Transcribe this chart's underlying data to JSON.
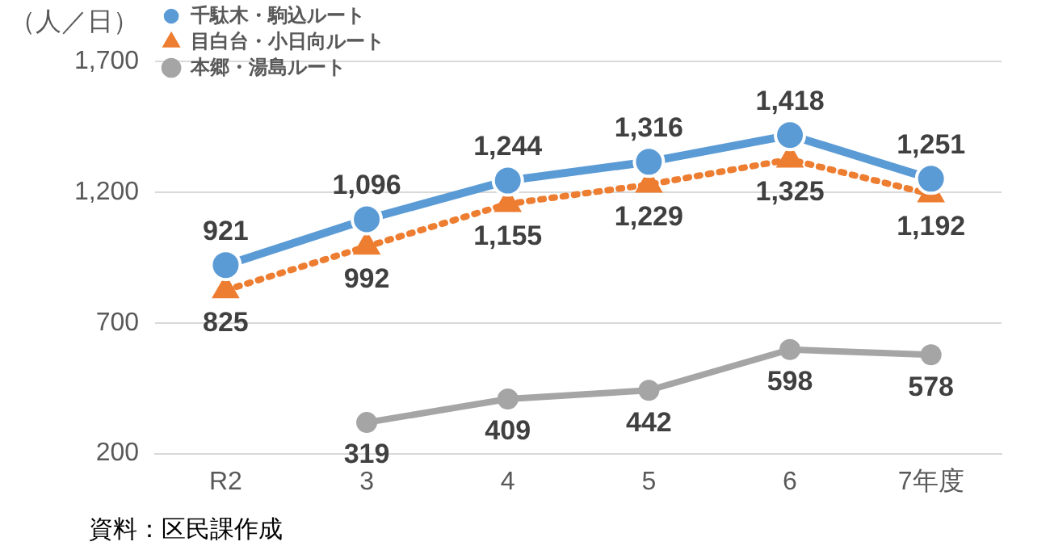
{
  "chart_data": {
    "type": "line",
    "ylabel": "（人／日）",
    "annotations": [
      "資料：区民課作成"
    ],
    "categories": [
      "R2",
      "3",
      "4",
      "5",
      "6",
      "7年度"
    ],
    "series": [
      {
        "name": "千駄木・駒込ルート",
        "color": "#5b9bd5",
        "marker": "circle",
        "line_style": "solid",
        "values": [
          921,
          1096,
          1244,
          1316,
          1418,
          1251
        ],
        "value_labels": [
          "921",
          "1,096",
          "1,244",
          "1,316",
          "1,418",
          "1,251"
        ]
      },
      {
        "name": "目白台・小日向ルート",
        "color": "#ed7d31",
        "marker": "triangle",
        "line_style": "dotted",
        "values": [
          825,
          992,
          1155,
          1229,
          1325,
          1192
        ],
        "value_labels": [
          "825",
          "992",
          "1,155",
          "1,229",
          "1,325",
          "1,192"
        ]
      },
      {
        "name": "本郷・湯島ルート",
        "color": "#a5a5a5",
        "marker": "circle",
        "line_style": "solid",
        "values": [
          null,
          319,
          409,
          442,
          598,
          578
        ],
        "value_labels": [
          null,
          "319",
          "409",
          "442",
          "598",
          "578"
        ]
      }
    ],
    "ylim": [
      200,
      1700
    ],
    "yticks": [
      200,
      700,
      {
        "value": 1200,
        "label": "1,200"
      },
      {
        "value": 1700,
        "label": "1,700"
      }
    ],
    "grid": "y",
    "legend": "top left"
  }
}
